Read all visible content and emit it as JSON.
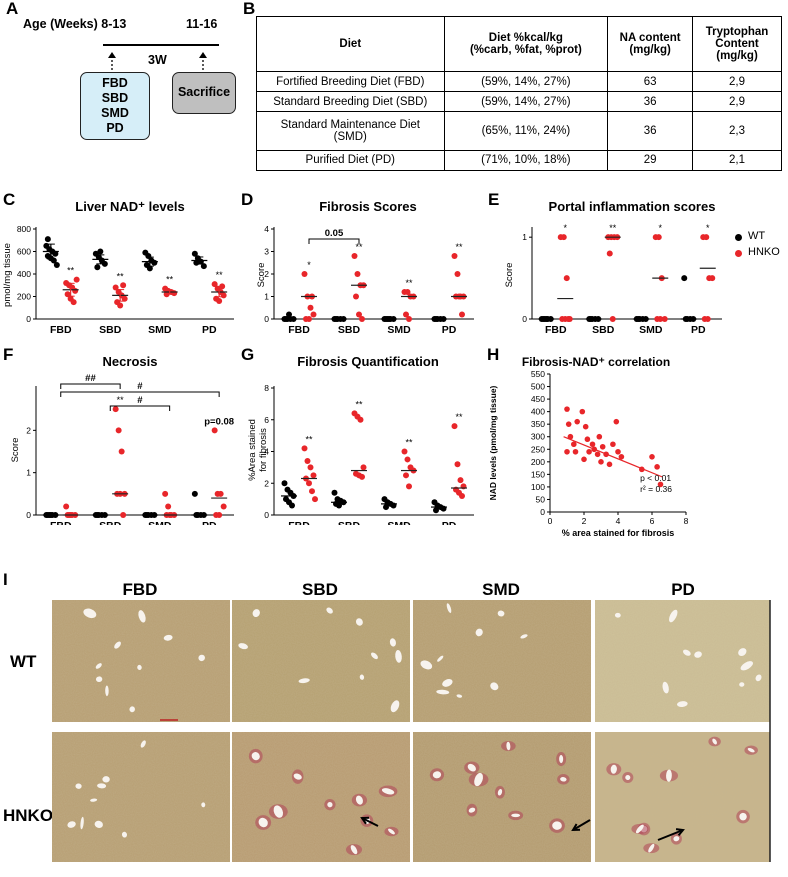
{
  "panels": {
    "A": "A",
    "B": "B",
    "C": "C",
    "D": "D",
    "E": "E",
    "F": "F",
    "G": "G",
    "H": "H",
    "I": "I"
  },
  "panel_a": {
    "age_label": "Age (Weeks) 8-13",
    "age_end": "11-16",
    "duration": "3W",
    "diet_box": "FBD\nSBD\nSMD\nPD",
    "end_box": "Sacrifice",
    "box_color": "#d6eef8",
    "end_box_color": "#bfbfbf"
  },
  "table": {
    "headers": [
      "Diet",
      "Diet %kcal/kg\n(%carb, %fat, %prot)",
      "NA content\n(mg/kg)",
      "Tryptophan\nContent\n(mg/kg)"
    ],
    "rows": [
      [
        "Fortified Breeding Diet (FBD)",
        "(59%, 14%, 27%)",
        "63",
        "2,9"
      ],
      [
        "Standard Breeding Diet (SBD)",
        "(59%, 14%, 27%)",
        "36",
        "2,9"
      ],
      [
        "Standard Maintenance Diet\n(SMD)",
        "(65%, 11%, 24%)",
        "36",
        "2,3"
      ],
      [
        "Purified Diet (PD)",
        "(71%, 10%, 18%)",
        "29",
        "2,1"
      ]
    ]
  },
  "legend": {
    "wt": "WT",
    "hnko": "HNKO",
    "wt_color": "#000000",
    "hnko_color": "#e8262a"
  },
  "chart_data": [
    {
      "id": "C",
      "type": "scatter",
      "title": "Liver NAD⁺ levels",
      "ylabel": "pmol/mg tissue",
      "ylim": [
        0,
        800
      ],
      "yticks": [
        0,
        200,
        400,
        600,
        800
      ],
      "categories": [
        "FBD",
        "SBD",
        "SMD",
        "PD"
      ],
      "series": [
        {
          "name": "WT",
          "groups": [
            [
              650,
              620,
              600,
              580,
              560,
              540,
              520,
              480,
              710
            ],
            [
              580,
              550,
              520,
              490,
              460,
              600
            ],
            [
              590,
              560,
              520,
              500,
              480,
              450
            ],
            [
              580,
              540,
              510,
              470,
              500
            ]
          ],
          "means": [
            600,
            530,
            510,
            520
          ]
        },
        {
          "name": "HNKO",
          "groups": [
            [
              320,
              300,
              280,
              250,
              220,
              180,
              150,
              350
            ],
            [
              280,
              240,
              210,
              180,
              150,
              120,
              300
            ],
            [
              270,
              250,
              240,
              230,
              220
            ],
            [
              310,
              270,
              240,
              210,
              180,
              160,
              290
            ]
          ],
          "means": [
            260,
            210,
            240,
            240
          ]
        }
      ],
      "annotations": [
        {
          "category": "FBD",
          "text": "**"
        },
        {
          "category": "SBD",
          "text": "**"
        },
        {
          "category": "SMD",
          "text": "**"
        },
        {
          "category": "PD",
          "text": "**"
        }
      ]
    },
    {
      "id": "D",
      "type": "scatter",
      "title": "Fibrosis Scores",
      "ylabel": "Score",
      "ylim": [
        0,
        4
      ],
      "yticks": [
        0,
        1,
        2,
        3,
        4
      ],
      "categories": [
        "FBD",
        "SBD",
        "SMD",
        "PD"
      ],
      "series": [
        {
          "name": "WT",
          "groups": [
            [
              0,
              0,
              0,
              0,
              0,
              0.2
            ],
            [
              0,
              0,
              0,
              0,
              0
            ],
            [
              0,
              0,
              0,
              0,
              0,
              0
            ],
            [
              0,
              0,
              0,
              0,
              0
            ]
          ],
          "means": [
            0,
            0,
            0,
            0
          ]
        },
        {
          "name": "HNKO",
          "groups": [
            [
              2.0,
              1.0,
              0.5,
              0.2,
              0,
              0,
              1.0
            ],
            [
              2.8,
              2.0,
              1.5,
              1.5,
              1.0,
              0.2,
              0
            ],
            [
              1.2,
              1.2,
              1.0,
              1.0,
              0.2,
              0
            ],
            [
              2.8,
              2.0,
              1.0,
              1.0,
              1.0,
              1.0,
              0.2
            ]
          ],
          "means": [
            1.0,
            1.5,
            1.0,
            1.0
          ]
        }
      ],
      "annotations": [
        {
          "category": "FBD",
          "text": "*"
        },
        {
          "category": "SBD",
          "text": "**"
        },
        {
          "category": "SMD",
          "text": "**"
        },
        {
          "category": "PD",
          "text": "**"
        }
      ],
      "bracket": {
        "from": "FBD",
        "to": "SBD",
        "label": "0.05"
      }
    },
    {
      "id": "E",
      "type": "scatter",
      "title": "Portal inflammation scores",
      "ylabel": "Score",
      "ylim": [
        0,
        1.1
      ],
      "yticks": [
        0,
        1
      ],
      "categories": [
        "FBD",
        "SBD",
        "SMD",
        "PD"
      ],
      "series": [
        {
          "name": "WT",
          "groups": [
            [
              0,
              0,
              0,
              0,
              0,
              0
            ],
            [
              0,
              0,
              0,
              0,
              0
            ],
            [
              0,
              0,
              0,
              0,
              0
            ],
            [
              0.5,
              0,
              0,
              0,
              0
            ]
          ],
          "means": [
            0,
            0,
            0,
            0
          ]
        },
        {
          "name": "HNKO",
          "groups": [
            [
              1,
              1,
              0.5,
              0,
              0,
              0,
              0
            ],
            [
              1,
              1,
              1,
              1,
              0.8,
              0
            ],
            [
              1,
              1,
              0.5,
              0,
              0,
              0
            ],
            [
              1,
              1,
              0.5,
              0.5,
              0,
              0
            ]
          ],
          "means": [
            0.25,
            1.0,
            0.5,
            0.62
          ]
        }
      ],
      "annotations": [
        {
          "category": "FBD",
          "text": "*"
        },
        {
          "category": "SBD",
          "text": "**"
        },
        {
          "category": "SMD",
          "text": "*"
        },
        {
          "category": "PD",
          "text": "*"
        }
      ]
    },
    {
      "id": "F",
      "type": "scatter",
      "title": "Necrosis",
      "ylabel": "Score",
      "ylim": [
        0,
        3
      ],
      "yticks": [
        0,
        1,
        2
      ],
      "categories": [
        "FBD",
        "SBD",
        "SMD",
        "PD"
      ],
      "series": [
        {
          "name": "WT",
          "groups": [
            [
              0,
              0,
              0,
              0,
              0,
              0
            ],
            [
              0,
              0,
              0,
              0,
              0
            ],
            [
              0,
              0,
              0,
              0,
              0
            ],
            [
              0.5,
              0,
              0,
              0,
              0
            ]
          ],
          "means": [
            0,
            0,
            0,
            0
          ]
        },
        {
          "name": "HNKO",
          "groups": [
            [
              0.2,
              0,
              0,
              0,
              0,
              0
            ],
            [
              2.5,
              2.0,
              1.5,
              0.5,
              0.5,
              0.5,
              0
            ],
            [
              0.5,
              0.2,
              0,
              0,
              0,
              0
            ],
            [
              2.0,
              0.5,
              0.5,
              0.2,
              0,
              0
            ]
          ],
          "means": [
            0,
            0.5,
            0,
            0.4
          ]
        }
      ],
      "annotations": [
        {
          "category": "SBD",
          "text": "**"
        },
        {
          "category": "PD",
          "text": "p=0.08"
        }
      ],
      "brackets": [
        {
          "from": "FBD",
          "to": "SBD",
          "label": "##"
        },
        {
          "from": "SBD",
          "to": "SMD",
          "label": "#"
        },
        {
          "from": "FBD",
          "to": "PD",
          "label": "#"
        }
      ]
    },
    {
      "id": "G",
      "type": "scatter",
      "title": "Fibrosis Quantification",
      "ylabel": "%Area stained\nfor fibrosis",
      "ylim": [
        0,
        8
      ],
      "yticks": [
        0,
        2,
        4,
        6,
        8
      ],
      "categories": [
        "FBD",
        "SBD",
        "SMD",
        "PD"
      ],
      "series": [
        {
          "name": "WT",
          "groups": [
            [
              2.0,
              1.6,
              1.4,
              1.2,
              1.0,
              0.8,
              0.6
            ],
            [
              1.4,
              1.0,
              0.9,
              0.8,
              0.7,
              0.6
            ],
            [
              1.0,
              0.8,
              0.7,
              0.6,
              0.5
            ],
            [
              0.8,
              0.6,
              0.5,
              0.4,
              0.3
            ]
          ],
          "means": [
            1.2,
            0.8,
            0.7,
            0.5
          ]
        },
        {
          "name": "HNKO",
          "groups": [
            [
              4.2,
              3.4,
              3.0,
              2.5,
              2.3,
              2.0,
              1.5,
              1.0
            ],
            [
              6.4,
              6.2,
              6.0,
              3.0,
              2.6,
              2.5,
              2.4
            ],
            [
              4.0,
              3.5,
              3.0,
              2.8,
              2.5,
              1.8
            ],
            [
              5.6,
              3.2,
              2.2,
              1.8,
              1.6,
              1.4,
              1.2
            ]
          ],
          "means": [
            2.3,
            2.8,
            2.8,
            1.7
          ]
        }
      ],
      "annotations": [
        {
          "category": "FBD",
          "text": "**"
        },
        {
          "category": "SBD",
          "text": "**"
        },
        {
          "category": "SMD",
          "text": "**"
        },
        {
          "category": "PD",
          "text": "**"
        }
      ]
    },
    {
      "id": "H",
      "type": "scatter",
      "title": "Fibrosis-NAD⁺ correlation",
      "xlabel": "% area stained for fibrosis",
      "ylabel": "NAD levels (pmol/mg tissue)",
      "xlim": [
        0,
        8
      ],
      "xticks": [
        0,
        2,
        4,
        6,
        8
      ],
      "ylim": [
        0,
        550
      ],
      "yticks": [
        0,
        50,
        100,
        150,
        200,
        250,
        300,
        350,
        400,
        450,
        500,
        550
      ],
      "points": [
        [
          1.0,
          410
        ],
        [
          1.1,
          350
        ],
        [
          1.2,
          300
        ],
        [
          1.4,
          270
        ],
        [
          1.5,
          240
        ],
        [
          1.0,
          240
        ],
        [
          1.6,
          360
        ],
        [
          1.9,
          400
        ],
        [
          2.1,
          340
        ],
        [
          2.2,
          290
        ],
        [
          2.3,
          240
        ],
        [
          2.5,
          270
        ],
        [
          2.6,
          250
        ],
        [
          2.8,
          230
        ],
        [
          3.0,
          200
        ],
        [
          3.1,
          260
        ],
        [
          3.3,
          230
        ],
        [
          3.5,
          190
        ],
        [
          3.7,
          270
        ],
        [
          3.9,
          360
        ],
        [
          4.0,
          240
        ],
        [
          4.2,
          220
        ],
        [
          5.4,
          170
        ],
        [
          6.0,
          220
        ],
        [
          6.3,
          180
        ],
        [
          6.5,
          110
        ],
        [
          2.9,
          300
        ],
        [
          2.0,
          210
        ]
      ],
      "fit": {
        "x0": 0.8,
        "y0": 300,
        "x1": 6.6,
        "y1": 140
      },
      "annotation_p": "p < 0.01",
      "annotation_r2": "r² = 0.36"
    }
  ],
  "histology": {
    "columns": [
      "FBD",
      "SBD",
      "SMD",
      "PD"
    ],
    "rows": [
      "WT",
      "HNKO"
    ]
  }
}
